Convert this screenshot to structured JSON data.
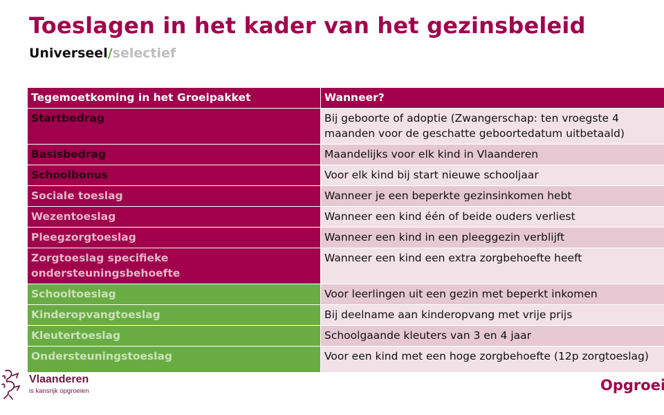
{
  "title": "Toeslagen in het kader van het gezinsbeleid",
  "subtitle": {
    "universal": "Universeel",
    "slash": "/",
    "selective": "selectief"
  },
  "table": {
    "headers": [
      "Tegemoetkoming in het Groeipakket",
      "Wanneer?"
    ],
    "rows": [
      {
        "name": "Startbedrag",
        "when": "Bij geboorte of adoptie (Zwangerschap: ten vroegste 4 maanden voor de geschatte geboortedatum uitbetaald)",
        "group": "universal"
      },
      {
        "name": "Basisbedrag",
        "when": "Maandelijks voor elk kind in Vlaanderen",
        "group": "universal"
      },
      {
        "name": "Schoolbonus",
        "when": "Voor elk kind bij start nieuwe schooljaar",
        "group": "universal"
      },
      {
        "name": "Sociale toeslag",
        "when": "Wanneer je een beperkte gezinsinkomen hebt",
        "group": "universal-light"
      },
      {
        "name": "Wezentoeslag",
        "when": "Wanneer een kind één of beide ouders verliest",
        "group": "universal-light"
      },
      {
        "name": "Pleegzorgtoeslag",
        "when": "Wanneer een kind in een pleeggezin verblijft",
        "group": "universal-light"
      },
      {
        "name": "Zorgtoeslag specifieke ondersteuningsbehoefte",
        "when": "Wanneer een kind een extra zorgbehoefte heeft",
        "group": "universal-light"
      },
      {
        "name": "Schooltoeslag",
        "when": "Voor leerlingen uit een gezin met beperkt inkomen",
        "group": "selective"
      },
      {
        "name": "Kinderopvangtoeslag",
        "when": "Bij deelname aan kinderopvang met vrije prijs",
        "group": "selective"
      },
      {
        "name": "Kleutertoeslag",
        "when": "Schoolgaande kleuters van 3 en 4 jaar",
        "group": "selective"
      },
      {
        "name": "Ondersteuningstoeslag",
        "when": "Voor een kind met een hoge zorgbehoefte (12p zorgtoeslag)",
        "group": "selective"
      }
    ]
  },
  "footer": {
    "logo_name": "Vlaanderen",
    "logo_tagline": "is kansrijk opgroeien",
    "brand": "Opgroeien"
  },
  "colors": {
    "primary": "#a0004c",
    "green": "#6aac44",
    "row_light": "#f2e2e8",
    "row_dark": "#e6c8d3"
  }
}
